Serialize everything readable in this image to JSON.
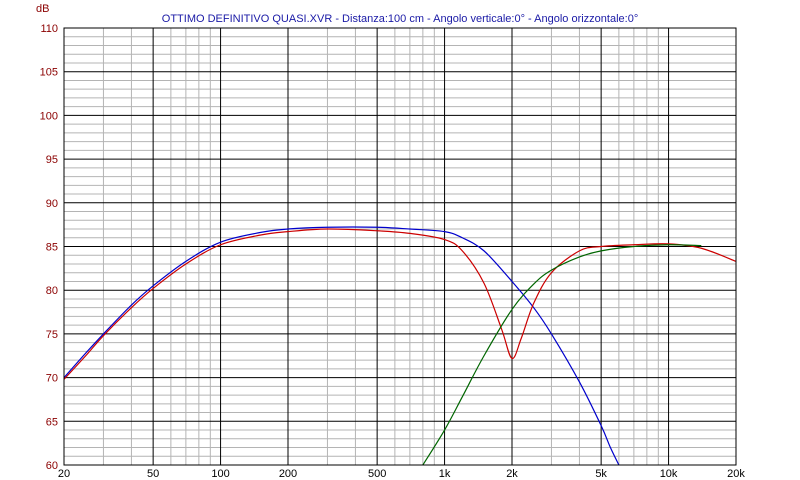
{
  "chart_data": {
    "type": "line",
    "title": "OTTIMO DEFINITIVO QUASI.XVR - Distanza:100 cm - Angolo verticale:0° - Angolo orizzontale:0°",
    "ylabel": "dB",
    "xlabel": "",
    "x_scale": "log",
    "xlim": [
      20,
      20000
    ],
    "ylim": [
      60,
      110
    ],
    "grid": true,
    "x_tick_values": [
      20,
      50,
      100,
      200,
      500,
      1000,
      2000,
      5000,
      10000,
      20000
    ],
    "x_tick_labels": [
      "20",
      "50",
      "100",
      "200",
      "500",
      "1k",
      "2k",
      "5k",
      "10k",
      "20k"
    ],
    "y_ticks": [
      60,
      65,
      70,
      75,
      80,
      85,
      90,
      95,
      100,
      105,
      110
    ],
    "series": [
      {
        "color": "#0000cc",
        "x": [
          20,
          25,
          30,
          40,
          50,
          70,
          100,
          150,
          200,
          300,
          500,
          700,
          1000,
          1200,
          1500,
          2000,
          2500,
          3000,
          4000,
          5000,
          5500,
          6000
        ],
        "y": [
          70,
          72.8,
          75,
          78.3,
          80.5,
          83.3,
          85.5,
          86.6,
          87.0,
          87.2,
          87.2,
          87.0,
          86.7,
          86.0,
          84.5,
          81.0,
          78.0,
          75.0,
          69.5,
          64.5,
          62.0,
          60.0
        ]
      },
      {
        "color": "#cc0000",
        "x": [
          20,
          25,
          30,
          40,
          50,
          70,
          100,
          150,
          200,
          300,
          500,
          700,
          1000,
          1200,
          1500,
          1800,
          2000,
          2200,
          2500,
          3000,
          4000,
          5000,
          7000,
          10000,
          14000,
          20000
        ],
        "y": [
          69.8,
          72.5,
          74.8,
          78.0,
          80.2,
          83.0,
          85.2,
          86.3,
          86.7,
          87.0,
          86.8,
          86.5,
          85.8,
          84.5,
          80.8,
          75.5,
          72.2,
          74.5,
          78.5,
          82.0,
          84.5,
          85.0,
          85.2,
          85.3,
          84.8,
          83.3
        ]
      },
      {
        "color": "#006600",
        "x": [
          800,
          1000,
          1200,
          1500,
          2000,
          2500,
          3000,
          4000,
          5000,
          7000,
          10000,
          14000
        ],
        "y": [
          60.0,
          64.0,
          67.8,
          72.5,
          77.8,
          80.7,
          82.3,
          83.8,
          84.5,
          85.0,
          85.2,
          85.1
        ]
      }
    ]
  }
}
